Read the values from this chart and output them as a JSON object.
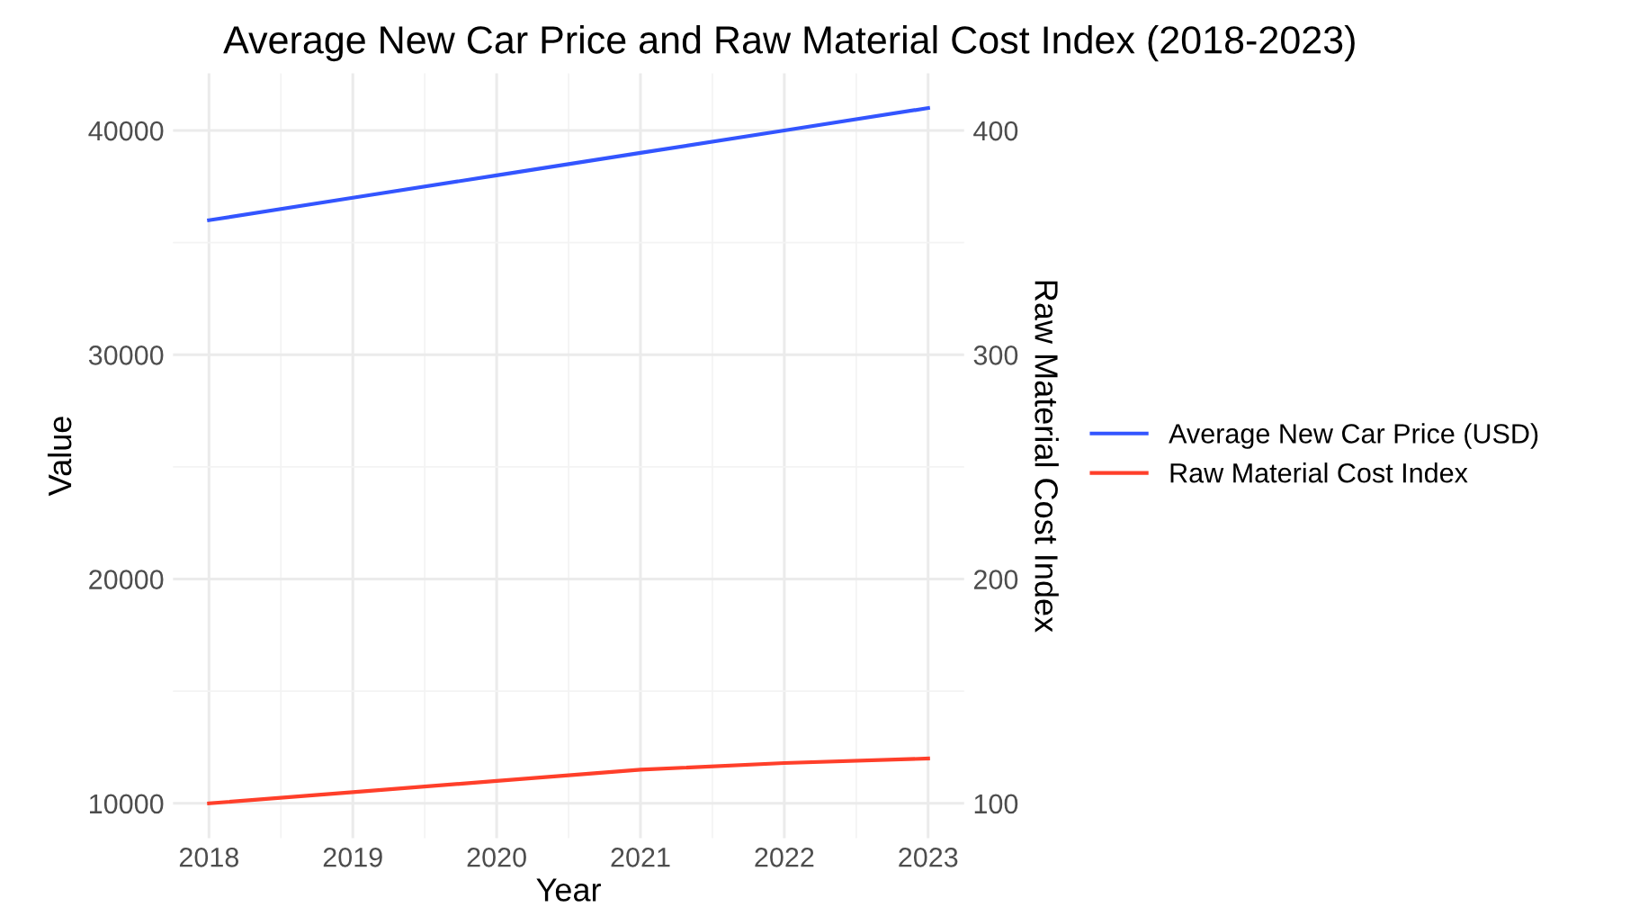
{
  "chart_data": {
    "type": "line",
    "title": "Average New Car Price and Raw Material Cost Index (2018-2023)",
    "xlabel": "Year",
    "ylabel": "Value",
    "y2label": "Raw Material Cost Index",
    "x": [
      2018,
      2019,
      2020,
      2021,
      2022,
      2023
    ],
    "series": [
      {
        "name": "Average New Car Price (USD)",
        "color": "#3355ff",
        "values": [
          36000,
          37000,
          38000,
          39000,
          40000,
          41000
        ]
      },
      {
        "name": "Raw Material Cost Index",
        "color": "#ff3f2a",
        "axis": "y2",
        "values": [
          100,
          105,
          110,
          115,
          118,
          120
        ]
      }
    ],
    "xlim": [
      2017.75,
      2023.25
    ],
    "xticks": [
      2018,
      2019,
      2020,
      2021,
      2022,
      2023
    ],
    "ylim": [
      8450,
      42550
    ],
    "yticks": [
      10000,
      20000,
      30000,
      40000
    ],
    "y2lim": [
      84.5,
      425.5
    ],
    "y2ticks": [
      100,
      200,
      300,
      400
    ],
    "grid": true,
    "legend": "right",
    "marker": "none",
    "line_style": "solid"
  }
}
